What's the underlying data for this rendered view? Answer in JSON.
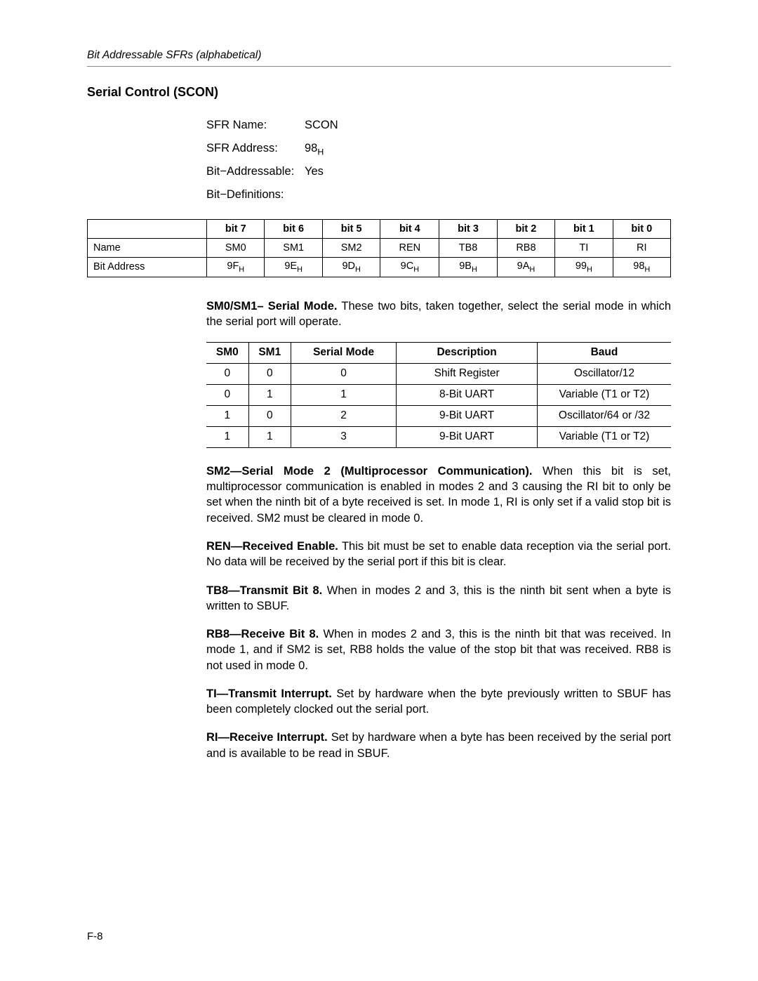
{
  "runningHead": "Bit Addressable SFRs (alphabetical)",
  "sectionTitle": "Serial Control (SCON)",
  "info": {
    "sfrNameLabel": "SFR Name:",
    "sfrName": "SCON",
    "sfrAddrLabel": "SFR Address:",
    "sfrAddr": "98",
    "sfrAddrSub": "H",
    "bitAddrLabel": "Bit−Addressable:",
    "bitAddr": "Yes",
    "bitDefLabel": "Bit−Definitions:"
  },
  "bitTable": {
    "headers": [
      "",
      "bit 7",
      "bit 6",
      "bit 5",
      "bit 4",
      "bit 3",
      "bit 2",
      "bit 1",
      "bit 0"
    ],
    "rows": [
      {
        "label": "Name",
        "cells": [
          "SM0",
          "SM1",
          "SM2",
          "REN",
          "TB8",
          "RB8",
          "TI",
          "RI"
        ]
      },
      {
        "label": "Bit Address",
        "cells": [
          "9F",
          "9E",
          "9D",
          "9C",
          "9B",
          "9A",
          "99",
          "98"
        ],
        "sub": "H"
      }
    ]
  },
  "smPara": {
    "lead": "SM0/SM1– Serial Mode.",
    "text": " These two bits, taken together, select the serial mode in which the serial port will operate."
  },
  "modeTable": {
    "headers": [
      "SM0",
      "SM1",
      "Serial Mode",
      "Description",
      "Baud"
    ],
    "rows": [
      [
        "0",
        "0",
        "0",
        "Shift Register",
        "Oscillator/12"
      ],
      [
        "0",
        "1",
        "1",
        "8-Bit UART",
        "Variable (T1 or T2)"
      ],
      [
        "1",
        "0",
        "2",
        "9-Bit UART",
        "Oscillator/64 or /32"
      ],
      [
        "1",
        "1",
        "3",
        "9-Bit UART",
        "Variable (T1 or T2)"
      ]
    ],
    "colWidths": [
      "60px",
      "60px",
      "150px",
      "200px",
      "190px"
    ]
  },
  "paras": [
    {
      "lead": "SM2—Serial Mode 2 (Multiprocessor Communication).",
      "text": " When this bit is set, multiprocessor communication is enabled in modes 2 and 3 causing the RI bit to only be set when the ninth bit of a byte received is set. In mode 1, RI is only set if a valid stop bit is received. SM2 must be cleared in mode 0."
    },
    {
      "lead": "REN—Received Enable.",
      "text": " This bit must be set to enable data reception via the serial port. No data will be received by the serial port if this bit is clear."
    },
    {
      "lead": "TB8—Transmit Bit 8.",
      "text": " When in modes 2 and 3, this is the ninth bit sent when a byte is written to SBUF."
    },
    {
      "lead": "RB8—Receive Bit 8.",
      "text": " When in modes 2 and 3, this is the ninth bit that was received. In mode 1, and if SM2 is set, RB8 holds the value of the stop bit that was received. RB8 is not used in mode 0."
    },
    {
      "lead": "TI—Transmit Interrupt.",
      "text": " Set by hardware when the byte previously written to SBUF has been completely clocked out the serial port."
    },
    {
      "lead": "RI—Receive Interrupt.",
      "text": " Set by hardware when a byte has been received by the serial port and is available to be read in SBUF."
    }
  ],
  "footer": "F-8"
}
